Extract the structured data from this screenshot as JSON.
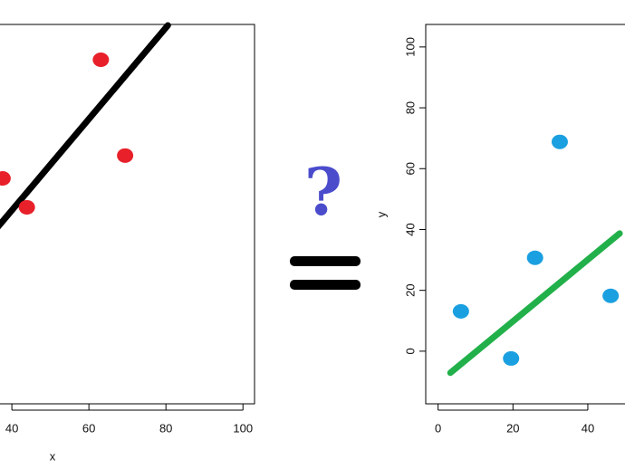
{
  "chart_data": [
    {
      "type": "scatter",
      "x_label": "x",
      "x": [
        63.1,
        69.4,
        37.6,
        43.9
      ],
      "y": [
        95.8,
        64.3,
        56.8,
        47.3
      ],
      "color": "#e8202a",
      "fit_line": {
        "x": [
          30,
          80.5
        ],
        "y": [
          31.3,
          107.1
        ],
        "color": "#000000"
      },
      "xlim": [
        -4,
        103
      ],
      "ylim": [
        -17.3,
        107.4
      ],
      "xticks": [
        40,
        60,
        80,
        100
      ]
    },
    {
      "type": "scatter",
      "y_label": "y",
      "x": [
        6.1,
        19.5,
        25.9,
        32.5,
        46.1
      ],
      "y": [
        13.1,
        -2.4,
        30.7,
        68.8,
        18.2
      ],
      "color": "#1aa0e0",
      "fit_line": {
        "x": [
          3.3,
          48.5
        ],
        "y": [
          -7.1,
          38.7
        ],
        "color": "#22b04a"
      },
      "xlim": [
        -3.3,
        108
      ],
      "ylim": [
        -17.3,
        107.4
      ],
      "xticks": [
        0,
        20,
        40
      ],
      "yticks": [
        0,
        20,
        40,
        60,
        80,
        100
      ]
    }
  ],
  "question_mark": "?"
}
